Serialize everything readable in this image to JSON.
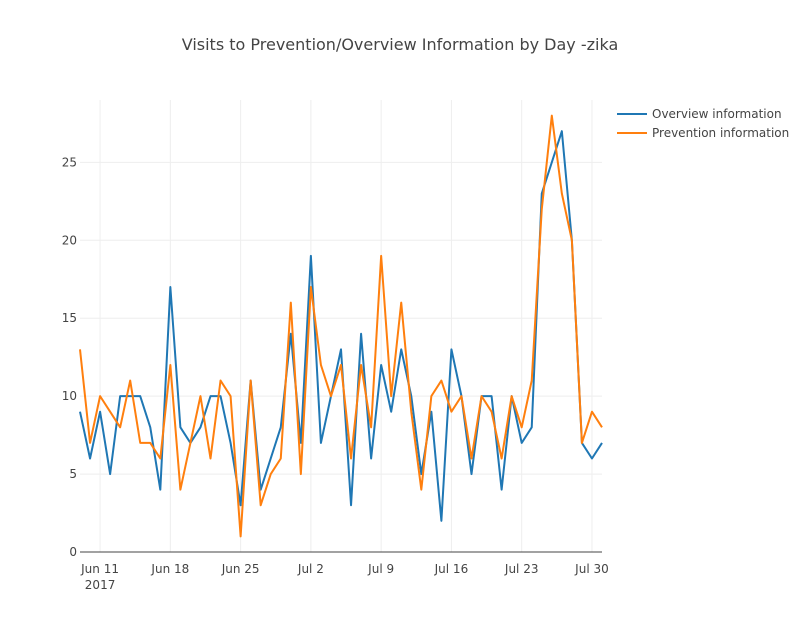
{
  "chart_data": {
    "type": "line",
    "title": "Visits to Prevention/Overview Information by Day -zika",
    "x_start": "2017-06-09",
    "x": [
      "2017-06-09",
      "2017-06-10",
      "2017-06-11",
      "2017-06-12",
      "2017-06-13",
      "2017-06-14",
      "2017-06-15",
      "2017-06-16",
      "2017-06-17",
      "2017-06-18",
      "2017-06-19",
      "2017-06-20",
      "2017-06-21",
      "2017-06-22",
      "2017-06-23",
      "2017-06-24",
      "2017-06-25",
      "2017-06-26",
      "2017-06-27",
      "2017-06-28",
      "2017-06-29",
      "2017-06-30",
      "2017-07-01",
      "2017-07-02",
      "2017-07-03",
      "2017-07-04",
      "2017-07-05",
      "2017-07-06",
      "2017-07-07",
      "2017-07-08",
      "2017-07-09",
      "2017-07-10",
      "2017-07-11",
      "2017-07-12",
      "2017-07-13",
      "2017-07-14",
      "2017-07-15",
      "2017-07-16",
      "2017-07-17",
      "2017-07-18",
      "2017-07-19",
      "2017-07-20",
      "2017-07-21",
      "2017-07-22",
      "2017-07-23",
      "2017-07-24",
      "2017-07-25",
      "2017-07-26",
      "2017-07-27",
      "2017-07-28",
      "2017-07-29",
      "2017-07-30",
      "2017-07-31"
    ],
    "series": [
      {
        "name": "Overview information",
        "color": "#1f77b4",
        "values": [
          9,
          6,
          9,
          5,
          10,
          10,
          10,
          8,
          4,
          17,
          8,
          7,
          8,
          10,
          10,
          7,
          3,
          11,
          4,
          6,
          8,
          14,
          7,
          19,
          7,
          10,
          13,
          3,
          14,
          6,
          12,
          9,
          13,
          10,
          5,
          9,
          2,
          13,
          10,
          5,
          10,
          10,
          4,
          10,
          7,
          8,
          23,
          25,
          27,
          20,
          7,
          6,
          7
        ]
      },
      {
        "name": "Prevention information",
        "color": "#ff7f0e",
        "values": [
          13,
          7,
          10,
          9,
          8,
          11,
          7,
          7,
          6,
          12,
          4,
          7,
          10,
          6,
          11,
          10,
          1,
          11,
          3,
          5,
          6,
          16,
          5,
          17,
          12,
          10,
          12,
          6,
          12,
          8,
          19,
          10,
          16,
          9,
          4,
          10,
          11,
          9,
          10,
          6,
          10,
          9,
          6,
          10,
          8,
          11,
          22,
          28,
          23,
          20,
          7,
          9,
          8
        ]
      }
    ],
    "x_ticks": [
      {
        "date": "2017-06-11",
        "label": "Jun 11",
        "sublabel": "2017"
      },
      {
        "date": "2017-06-18",
        "label": "Jun 18",
        "sublabel": ""
      },
      {
        "date": "2017-06-25",
        "label": "Jun 25",
        "sublabel": ""
      },
      {
        "date": "2017-07-02",
        "label": "Jul 2",
        "sublabel": ""
      },
      {
        "date": "2017-07-09",
        "label": "Jul 9",
        "sublabel": ""
      },
      {
        "date": "2017-07-16",
        "label": "Jul 16",
        "sublabel": ""
      },
      {
        "date": "2017-07-23",
        "label": "Jul 23",
        "sublabel": ""
      },
      {
        "date": "2017-07-30",
        "label": "Jul 30",
        "sublabel": ""
      }
    ],
    "y_ticks": [
      0,
      5,
      10,
      15,
      20,
      25
    ],
    "xlim": [
      "2017-06-09",
      "2017-07-31"
    ],
    "ylim": [
      0,
      29
    ],
    "xlabel": "",
    "ylabel": "",
    "grid": true,
    "legend_position": "top-right"
  }
}
